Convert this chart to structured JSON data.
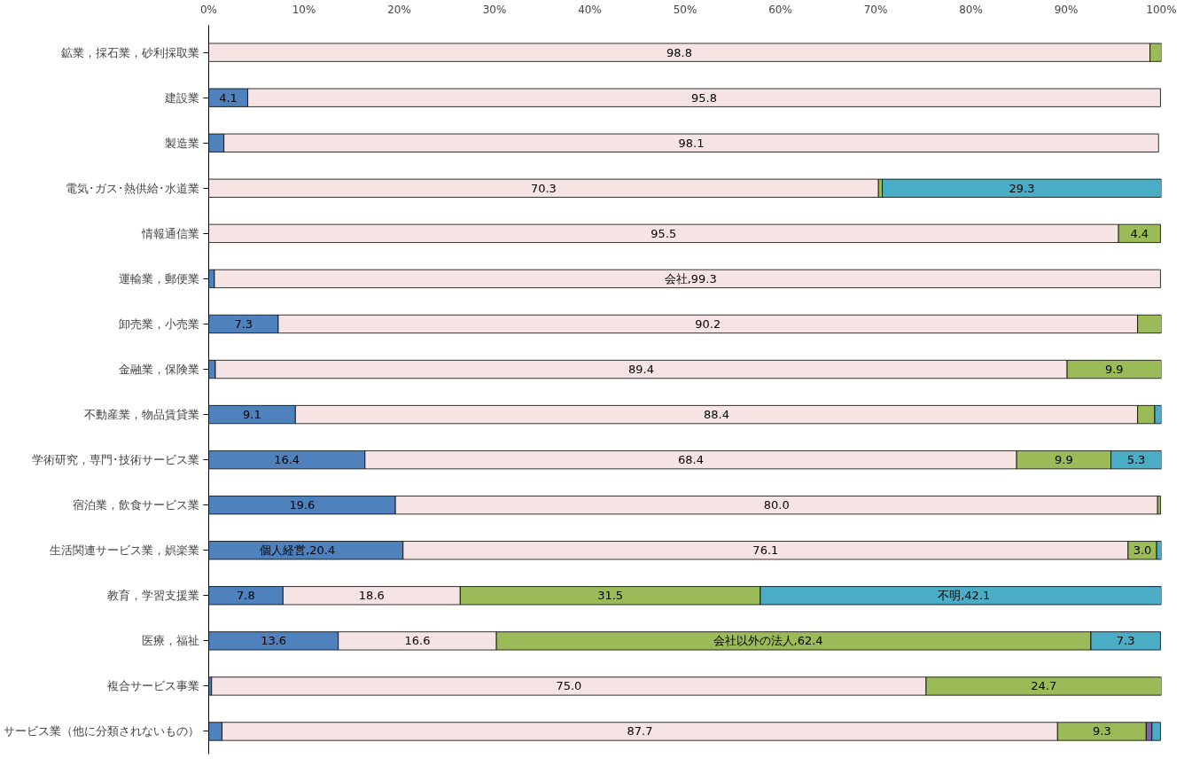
{
  "chart_data": {
    "type": "bar",
    "orientation": "horizontal",
    "stacked": true,
    "grid": false,
    "categories": [
      "鉱業，採石業，砂利採取業",
      "建設業",
      "製造業",
      "電気･ガス･熱供給･水道業",
      "情報通信業",
      "運輸業，郵便業",
      "卸売業，小売業",
      "金融業，保険業",
      "不動産業，物品賃貸業",
      "学術研究，専門･技術サービス業",
      "宿泊業，飲食サービス業",
      "生活関連サービス業，娯楽業",
      "教育，学習支援業",
      "医療，福祉",
      "複合サービス事業",
      "サービス業（他に分類されないもの）"
    ],
    "xlim": [
      0,
      100
    ],
    "xticks": [
      {
        "value": 0,
        "label": "0%"
      },
      {
        "value": 10,
        "label": "10%"
      },
      {
        "value": 20,
        "label": "20%"
      },
      {
        "value": 30,
        "label": "30%"
      },
      {
        "value": 40,
        "label": "40%"
      },
      {
        "value": 50,
        "label": "50%"
      },
      {
        "value": 60,
        "label": "60%"
      },
      {
        "value": 70,
        "label": "70%"
      },
      {
        "value": 80,
        "label": "80%"
      },
      {
        "value": 90,
        "label": "90%"
      },
      {
        "value": 100,
        "label": "100%"
      }
    ],
    "series": [
      {
        "name": "個人経営",
        "color": "#4f81bd",
        "values": [
          null,
          4.1,
          1.6,
          null,
          null,
          0.6,
          7.3,
          0.7,
          9.1,
          16.4,
          19.6,
          20.4,
          7.8,
          13.6,
          0.3,
          1.4
        ],
        "value_labels": [
          null,
          "4.1",
          null,
          null,
          null,
          null,
          "7.3",
          null,
          "9.1",
          "16.4",
          "19.6",
          ",20.4",
          "7.8",
          "13.6",
          null,
          null
        ]
      },
      {
        "name": "会社",
        "color": "#f6e4e4",
        "values": [
          98.8,
          95.8,
          98.1,
          70.3,
          95.5,
          99.3,
          90.2,
          89.4,
          88.4,
          68.4,
          80.0,
          76.1,
          18.6,
          16.6,
          75.0,
          87.7
        ],
        "value_labels": [
          "98.8",
          "95.8",
          "98.1",
          "70.3",
          "95.5",
          ",99.3",
          "90.2",
          "89.4",
          "88.4",
          "68.4",
          "80.0",
          "76.1",
          "18.6",
          "16.6",
          "75.0",
          "87.7"
        ]
      },
      {
        "name": "会社以外の法人",
        "color": "#9bbb59",
        "values": [
          1.2,
          null,
          null,
          0.4,
          4.4,
          null,
          2.5,
          9.9,
          1.8,
          9.9,
          0.3,
          3.0,
          31.5,
          62.4,
          24.7,
          9.3
        ],
        "value_labels": [
          null,
          null,
          null,
          null,
          "4.4",
          null,
          null,
          "9.9",
          null,
          "9.9",
          null,
          "3.0",
          "31.5",
          ",62.4",
          "24.7",
          "9.3"
        ]
      },
      {
        "color": "#8064a2",
        "values": [
          null,
          null,
          null,
          null,
          null,
          null,
          null,
          null,
          null,
          null,
          null,
          null,
          null,
          null,
          null,
          0.6
        ]
      },
      {
        "name": "不明",
        "color": "#4bacc6",
        "values": [
          null,
          null,
          null,
          29.3,
          null,
          null,
          null,
          null,
          0.7,
          5.3,
          null,
          0.5,
          42.1,
          7.3,
          null,
          0.9
        ],
        "value_labels": [
          null,
          null,
          null,
          "29.3",
          null,
          null,
          null,
          null,
          null,
          "5.3",
          null,
          null,
          ",42.1",
          "7.3",
          null,
          null
        ]
      }
    ]
  }
}
